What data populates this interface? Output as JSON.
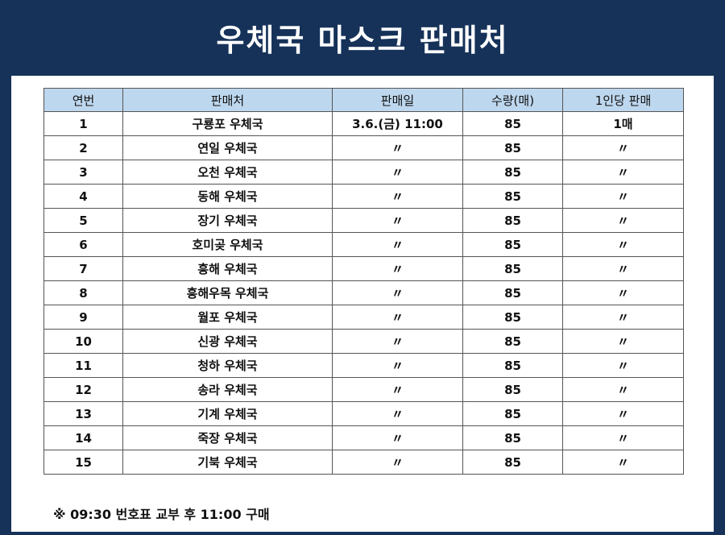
{
  "title": "우체국 마스크 판매처",
  "table": {
    "headers": [
      "연번",
      "판매처",
      "판매일",
      "수량(매)",
      "1인당 판매"
    ],
    "rows": [
      [
        "1",
        "구룡포 우체국",
        "3.6.(금) 11:00",
        "85",
        "1매"
      ],
      [
        "2",
        "연일 우체국",
        "〃",
        "85",
        "〃"
      ],
      [
        "3",
        "오천 우체국",
        "〃",
        "85",
        "〃"
      ],
      [
        "4",
        "동해 우체국",
        "〃",
        "85",
        "〃"
      ],
      [
        "5",
        "장기 우체국",
        "〃",
        "85",
        "〃"
      ],
      [
        "6",
        "호미곶 우체국",
        "〃",
        "85",
        "〃"
      ],
      [
        "7",
        "흥해 우체국",
        "〃",
        "85",
        "〃"
      ],
      [
        "8",
        "흥해우목 우체국",
        "〃",
        "85",
        "〃"
      ],
      [
        "9",
        "월포 우체국",
        "〃",
        "85",
        "〃"
      ],
      [
        "10",
        "신광 우체국",
        "〃",
        "85",
        "〃"
      ],
      [
        "11",
        "청하 우체국",
        "〃",
        "85",
        "〃"
      ],
      [
        "12",
        "송라 우체국",
        "〃",
        "85",
        "〃"
      ],
      [
        "13",
        "기계 우체국",
        "〃",
        "85",
        "〃"
      ],
      [
        "14",
        "죽장 우체국",
        "〃",
        "85",
        "〃"
      ],
      [
        "15",
        "기북 우체국",
        "〃",
        "85",
        "〃"
      ]
    ]
  },
  "note": "※  09:30 번호표 교부 후 11:00 구매",
  "colors": {
    "background": "#163259",
    "header_fill": "#bdd7ee",
    "panel": "#ffffff"
  }
}
